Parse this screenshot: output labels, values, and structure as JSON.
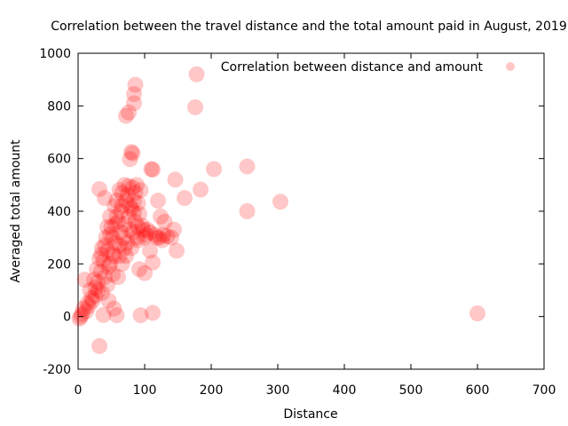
{
  "chart_data": {
    "type": "scatter",
    "title": "Correlation between the travel distance and the total amount paid in August, 2019",
    "xlabel": "Distance",
    "ylabel": "Averaged total amount",
    "xlim": [
      0,
      700
    ],
    "ylim": [
      -200,
      1000
    ],
    "xticks": [
      0,
      100,
      200,
      300,
      400,
      500,
      600,
      700
    ],
    "yticks": [
      -200,
      0,
      200,
      400,
      600,
      800,
      1000
    ],
    "grid": false,
    "legend_position": "top-right",
    "series": [
      {
        "name": "Correlation between distance and amount",
        "color": "#ff0000",
        "marker": "circle",
        "opacity": 0.22,
        "points": [
          [
            86,
            880
          ],
          [
            84,
            845
          ],
          [
            84,
            810
          ],
          [
            178,
            920
          ],
          [
            176,
            795
          ],
          [
            72,
            762
          ],
          [
            76,
            775
          ],
          [
            80,
            625
          ],
          [
            82,
            620
          ],
          [
            78,
            598
          ],
          [
            110,
            560
          ],
          [
            112,
            558
          ],
          [
            204,
            560
          ],
          [
            254,
            570
          ],
          [
            146,
            520
          ],
          [
            184,
            482
          ],
          [
            160,
            450
          ],
          [
            254,
            400
          ],
          [
            304,
            436
          ],
          [
            32,
            484
          ],
          [
            120,
            440
          ],
          [
            124,
            380
          ],
          [
            130,
            360
          ],
          [
            144,
            330
          ],
          [
            148,
            250
          ],
          [
            108,
            250
          ],
          [
            112,
            205
          ],
          [
            100,
            165
          ],
          [
            92,
            180
          ],
          [
            112,
            14
          ],
          [
            94,
            5
          ],
          [
            58,
            5
          ],
          [
            38,
            6
          ],
          [
            32,
            -112
          ],
          [
            600,
            12
          ],
          [
            54,
            30
          ],
          [
            46,
            60
          ],
          [
            10,
            140
          ],
          [
            126,
            290
          ],
          [
            118,
            300
          ],
          [
            108,
            320
          ],
          [
            90,
            430
          ],
          [
            94,
            480
          ],
          [
            88,
            500
          ],
          [
            70,
            500
          ],
          [
            62,
            480
          ],
          [
            40,
            450
          ],
          [
            96,
            345
          ],
          [
            102,
            310
          ],
          [
            90,
            290
          ],
          [
            60,
            150
          ],
          [
            44,
            120
          ],
          [
            36,
            90
          ],
          [
            26,
            80
          ],
          [
            22,
            60
          ],
          [
            16,
            40
          ],
          [
            12,
            20
          ],
          [
            6,
            10
          ],
          [
            4,
            0
          ],
          [
            2,
            -8
          ],
          [
            8,
            30
          ],
          [
            14,
            50
          ],
          [
            20,
            70
          ],
          [
            30,
            100
          ],
          [
            48,
            200
          ],
          [
            52,
            240
          ],
          [
            56,
            280
          ],
          [
            64,
            320
          ],
          [
            70,
            350
          ],
          [
            76,
            380
          ],
          [
            80,
            410
          ],
          [
            84,
            440
          ],
          [
            86,
            470
          ],
          [
            82,
            490
          ],
          [
            74,
            460
          ],
          [
            66,
            420
          ],
          [
            58,
            380
          ],
          [
            50,
            340
          ],
          [
            42,
            300
          ],
          [
            36,
            260
          ],
          [
            32,
            220
          ],
          [
            28,
            180
          ],
          [
            24,
            140
          ],
          [
            18,
            100
          ],
          [
            40,
            150
          ],
          [
            46,
            190
          ],
          [
            54,
            230
          ],
          [
            62,
            270
          ],
          [
            68,
            300
          ],
          [
            78,
            330
          ],
          [
            86,
            360
          ],
          [
            92,
            390
          ],
          [
            66,
            200
          ],
          [
            72,
            230
          ],
          [
            80,
            260
          ],
          [
            88,
            300
          ],
          [
            98,
            330
          ],
          [
            60,
            360
          ],
          [
            52,
            300
          ],
          [
            44,
            250
          ],
          [
            38,
            210
          ],
          [
            34,
            170
          ],
          [
            30,
            130
          ],
          [
            26,
            110
          ],
          [
            84,
            395
          ],
          [
            78,
            420
          ],
          [
            72,
            440
          ],
          [
            64,
            400
          ],
          [
            56,
            350
          ],
          [
            48,
            310
          ],
          [
            40,
            270
          ],
          [
            35,
            235
          ],
          [
            55,
            420
          ],
          [
            48,
            380
          ],
          [
            44,
            340
          ],
          [
            58,
            440
          ],
          [
            66,
            470
          ],
          [
            76,
            495
          ],
          [
            52,
            160
          ],
          [
            62,
            230
          ],
          [
            70,
            260
          ],
          [
            74,
            280
          ],
          [
            82,
            320
          ],
          [
            90,
            340
          ],
          [
            100,
            300
          ],
          [
            104,
            330
          ],
          [
            116,
            310
          ],
          [
            122,
            300
          ],
          [
            134,
            305
          ],
          [
            140,
            300
          ],
          [
            128,
            310
          ]
        ]
      }
    ]
  }
}
